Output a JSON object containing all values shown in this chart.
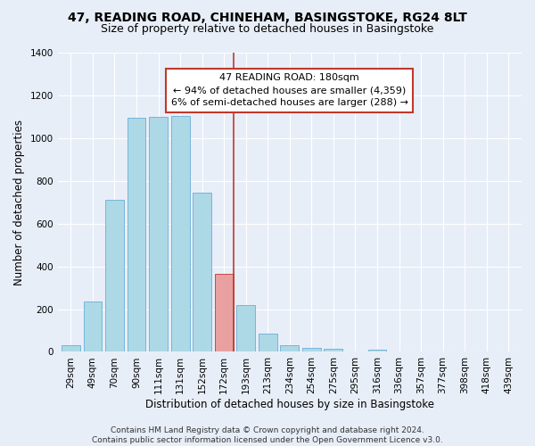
{
  "title": "47, READING ROAD, CHINEHAM, BASINGSTOKE, RG24 8LT",
  "subtitle": "Size of property relative to detached houses in Basingstoke",
  "xlabel": "Distribution of detached houses by size in Basingstoke",
  "ylabel": "Number of detached properties",
  "categories": [
    "29sqm",
    "49sqm",
    "70sqm",
    "90sqm",
    "111sqm",
    "131sqm",
    "152sqm",
    "172sqm",
    "193sqm",
    "213sqm",
    "234sqm",
    "254sqm",
    "275sqm",
    "295sqm",
    "316sqm",
    "336sqm",
    "357sqm",
    "377sqm",
    "398sqm",
    "418sqm",
    "439sqm"
  ],
  "values": [
    30,
    235,
    710,
    1095,
    1100,
    1105,
    745,
    365,
    220,
    85,
    30,
    20,
    15,
    0,
    10,
    0,
    0,
    0,
    0,
    0,
    0
  ],
  "bar_color": "#add8e6",
  "bar_edge_color": "#6aaed6",
  "highlight_bar_index": 7,
  "highlight_bar_color": "#e8a0a0",
  "highlight_bar_edge_color": "#c0392b",
  "vline_color": "#c0392b",
  "annotation_line1": "47 READING ROAD: 180sqm",
  "annotation_line2": "← 94% of detached houses are smaller (4,359)",
  "annotation_line3": "6% of semi-detached houses are larger (288) →",
  "annotation_box_color": "#ffffff",
  "annotation_box_edge_color": "#c0392b",
  "footer_line1": "Contains HM Land Registry data © Crown copyright and database right 2024.",
  "footer_line2": "Contains public sector information licensed under the Open Government Licence v3.0.",
  "ylim": [
    0,
    1400
  ],
  "yticks": [
    0,
    200,
    400,
    600,
    800,
    1000,
    1200,
    1400
  ],
  "title_fontsize": 10,
  "subtitle_fontsize": 9,
  "axis_label_fontsize": 8.5,
  "tick_fontsize": 7.5,
  "annotation_fontsize": 8,
  "footer_fontsize": 6.5,
  "background_color": "#e8eef8",
  "plot_background_color": "#e8eef8",
  "grid_color": "#ffffff",
  "fig_width": 6.0,
  "fig_height": 5.0
}
